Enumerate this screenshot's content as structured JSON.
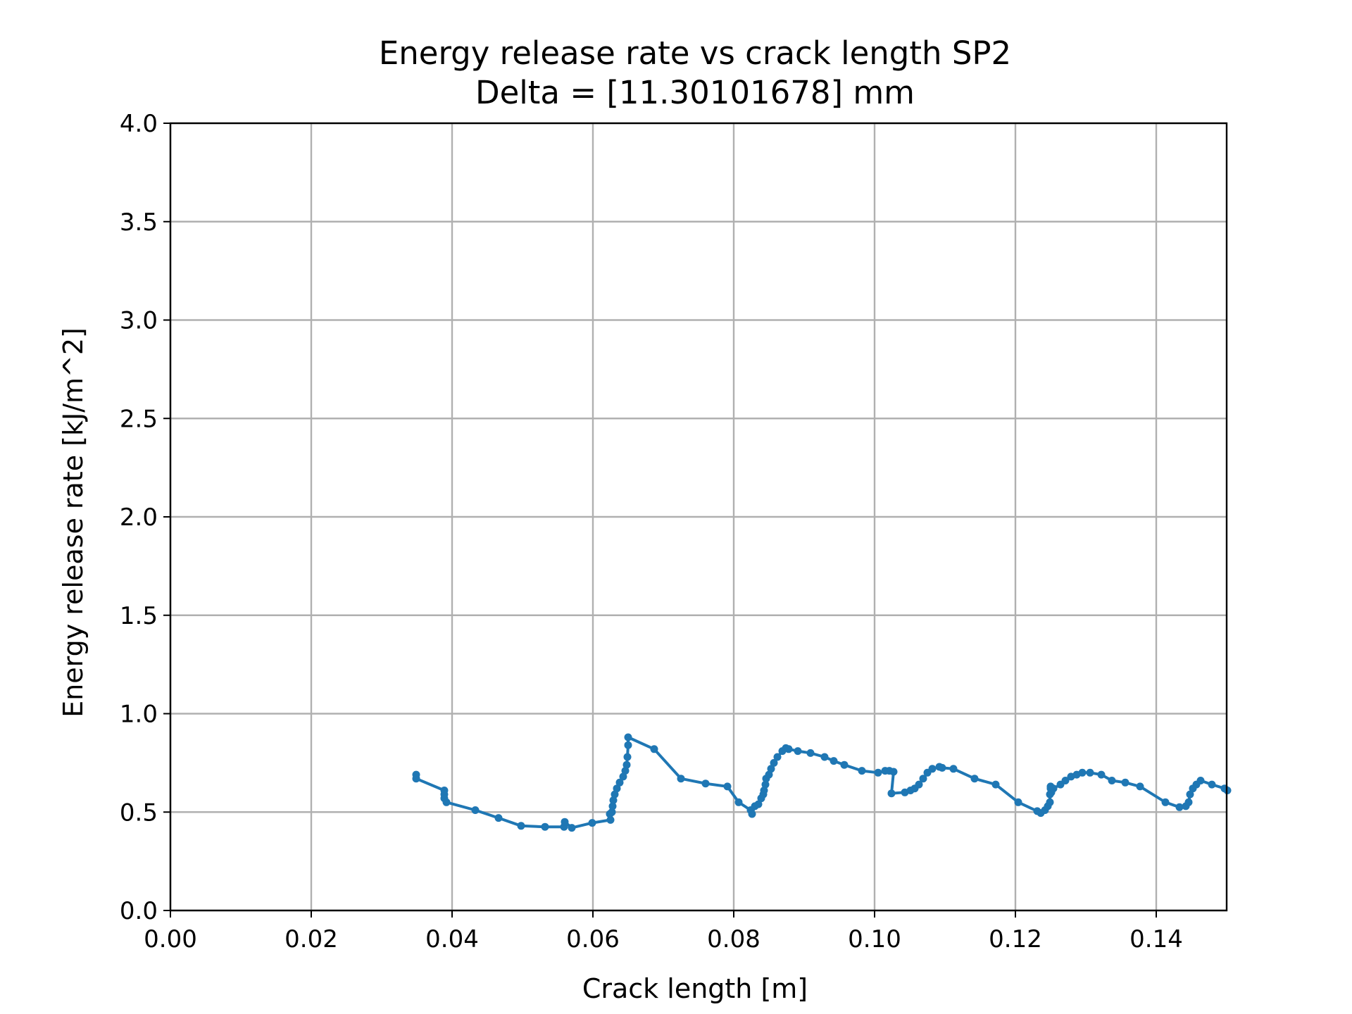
{
  "chart_data": {
    "type": "line",
    "title": "Energy release rate vs crack length SP2",
    "subtitle": "Delta = [11.30101678] mm",
    "xlabel": "Crack length [m]",
    "ylabel": "Energy release rate [kJ/m^2]",
    "xlim": [
      0.0,
      0.15
    ],
    "ylim": [
      0.0,
      4.0
    ],
    "x_ticks": [
      0.0,
      0.02,
      0.04,
      0.06,
      0.08,
      0.1,
      0.12,
      0.14
    ],
    "x_tick_labels": [
      "0.00",
      "0.02",
      "0.04",
      "0.06",
      "0.08",
      "0.10",
      "0.12",
      "0.14"
    ],
    "y_ticks": [
      0.0,
      0.5,
      1.0,
      1.5,
      2.0,
      2.5,
      3.0,
      3.5,
      4.0
    ],
    "y_tick_labels": [
      "0.0",
      "0.5",
      "1.0",
      "1.5",
      "2.0",
      "2.5",
      "3.0",
      "3.5",
      "4.0"
    ],
    "grid": true,
    "series": [
      {
        "color": "#1f77b4",
        "marker": "circle",
        "x": [
          0.0349,
          0.0349,
          0.0389,
          0.0389,
          0.0389,
          0.0392,
          0.0433,
          0.0466,
          0.0498,
          0.0532,
          0.0559,
          0.056,
          0.057,
          0.0599,
          0.0625,
          0.0624,
          0.0627,
          0.0628,
          0.0629,
          0.0631,
          0.0634,
          0.0638,
          0.0643,
          0.0646,
          0.0648,
          0.0649,
          0.065,
          0.065,
          0.0687,
          0.0725,
          0.076,
          0.0791,
          0.0807,
          0.0824,
          0.0826,
          0.083,
          0.0835,
          0.0839,
          0.0842,
          0.0843,
          0.0845,
          0.0846,
          0.085,
          0.0853,
          0.0857,
          0.0862,
          0.0869,
          0.0874,
          0.0878,
          0.0891,
          0.0909,
          0.0929,
          0.0942,
          0.0957,
          0.0982,
          0.1005,
          0.1015,
          0.1021,
          0.1027,
          0.1024,
          0.1043,
          0.1051,
          0.1057,
          0.1063,
          0.1069,
          0.1075,
          0.1082,
          0.1092,
          0.1096,
          0.1112,
          0.1142,
          0.1172,
          0.1204,
          0.1231,
          0.1236,
          0.1242,
          0.1246,
          0.1249,
          0.1249,
          0.125,
          0.125,
          0.1251,
          0.1254,
          0.1264,
          0.1271,
          0.1279,
          0.1287,
          0.1295,
          0.1306,
          0.1322,
          0.1337,
          0.1356,
          0.1377,
          0.1413,
          0.1433,
          0.1442,
          0.1446,
          0.1448,
          0.1452,
          0.1457,
          0.1463,
          0.1479,
          0.1497,
          0.1501
        ],
        "y": [
          0.69,
          0.67,
          0.61,
          0.59,
          0.57,
          0.55,
          0.51,
          0.47,
          0.43,
          0.425,
          0.425,
          0.45,
          0.42,
          0.445,
          0.46,
          0.49,
          0.5,
          0.53,
          0.56,
          0.59,
          0.62,
          0.65,
          0.68,
          0.71,
          0.74,
          0.78,
          0.84,
          0.88,
          0.82,
          0.67,
          0.645,
          0.63,
          0.55,
          0.51,
          0.49,
          0.53,
          0.54,
          0.57,
          0.59,
          0.61,
          0.64,
          0.67,
          0.69,
          0.72,
          0.75,
          0.78,
          0.81,
          0.825,
          0.82,
          0.81,
          0.8,
          0.78,
          0.76,
          0.74,
          0.71,
          0.7,
          0.71,
          0.71,
          0.705,
          0.595,
          0.6,
          0.61,
          0.62,
          0.64,
          0.67,
          0.7,
          0.72,
          0.73,
          0.725,
          0.72,
          0.67,
          0.64,
          0.55,
          0.505,
          0.495,
          0.51,
          0.53,
          0.55,
          0.59,
          0.62,
          0.63,
          0.6,
          0.62,
          0.64,
          0.66,
          0.68,
          0.69,
          0.7,
          0.7,
          0.69,
          0.66,
          0.65,
          0.63,
          0.55,
          0.525,
          0.53,
          0.55,
          0.59,
          0.62,
          0.64,
          0.66,
          0.64,
          0.62,
          0.61
        ]
      }
    ]
  },
  "colors": {
    "series": "#1f77b4",
    "grid": "#b0b0b0",
    "axes": "#000000",
    "background": "#ffffff"
  }
}
